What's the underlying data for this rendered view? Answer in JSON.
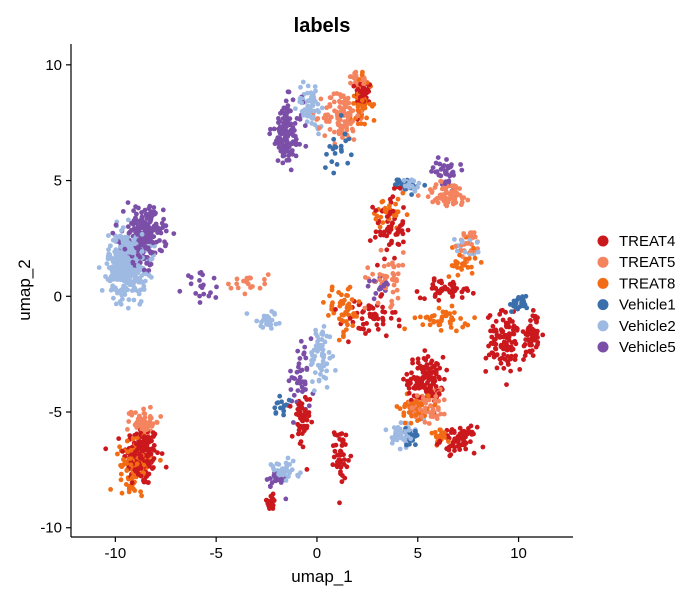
{
  "chart_data": {
    "type": "scatter",
    "title": "labels",
    "xlabel": "umap_1",
    "ylabel": "umap_2",
    "xlim": [
      -12.2,
      12.7
    ],
    "ylim": [
      -10.4,
      10.9
    ],
    "xticks": [
      -10,
      -5,
      0,
      5,
      10
    ],
    "yticks": [
      -10,
      -5,
      0,
      5,
      10
    ],
    "grid": false,
    "legend_position": "right",
    "series": [
      {
        "name": "TREAT4",
        "color": "#cb181d",
        "clusters": [
          {
            "cx": -8.7,
            "cy": -6.9,
            "sx": 0.8,
            "sy": 1.2,
            "n": 160
          },
          {
            "cx": 2.3,
            "cy": 8.8,
            "sx": 0.35,
            "sy": 0.5,
            "n": 50
          },
          {
            "cx": 3.6,
            "cy": 3.0,
            "sx": 0.7,
            "sy": 1.3,
            "n": 60
          },
          {
            "cx": 5.4,
            "cy": -3.6,
            "sx": 0.8,
            "sy": 0.9,
            "n": 120
          },
          {
            "cx": 7.0,
            "cy": -6.2,
            "sx": 0.8,
            "sy": 0.5,
            "n": 70
          },
          {
            "cx": 9.4,
            "cy": -2.0,
            "sx": 0.9,
            "sy": 1.2,
            "n": 110
          },
          {
            "cx": 10.7,
            "cy": -1.6,
            "sx": 0.3,
            "sy": 0.9,
            "n": 50
          },
          {
            "cx": 1.2,
            "cy": -6.8,
            "sx": 0.3,
            "sy": 1.0,
            "n": 45
          },
          {
            "cx": -0.8,
            "cy": -5.5,
            "sx": 0.4,
            "sy": 1.2,
            "n": 45
          },
          {
            "cx": -2.3,
            "cy": -8.9,
            "sx": 0.3,
            "sy": 0.3,
            "n": 20
          },
          {
            "cx": 6.5,
            "cy": 0.3,
            "sx": 1.2,
            "sy": 0.35,
            "n": 50
          },
          {
            "cx": 2.6,
            "cy": -1.0,
            "sx": 1.2,
            "sy": 0.8,
            "n": 50
          }
        ]
      },
      {
        "name": "TREAT5",
        "color": "#f4845f",
        "clusters": [
          {
            "cx": -8.6,
            "cy": -5.4,
            "sx": 0.7,
            "sy": 0.6,
            "n": 60
          },
          {
            "cx": 1.2,
            "cy": 7.8,
            "sx": 0.8,
            "sy": 1.0,
            "n": 100
          },
          {
            "cx": 2.1,
            "cy": 9.3,
            "sx": 0.35,
            "sy": 0.3,
            "n": 30
          },
          {
            "cx": 6.5,
            "cy": 4.4,
            "sx": 1.1,
            "sy": 0.5,
            "n": 70
          },
          {
            "cx": 7.6,
            "cy": 2.2,
            "sx": 0.5,
            "sy": 0.6,
            "n": 30
          },
          {
            "cx": 5.6,
            "cy": -4.6,
            "sx": 0.8,
            "sy": 0.8,
            "n": 50
          },
          {
            "cx": 3.5,
            "cy": 0.8,
            "sx": 1.0,
            "sy": 1.0,
            "n": 40
          },
          {
            "cx": -3.5,
            "cy": 0.6,
            "sx": 1.0,
            "sy": 0.4,
            "n": 20
          }
        ]
      },
      {
        "name": "TREAT8",
        "color": "#f26b15",
        "clusters": [
          {
            "cx": -9.0,
            "cy": -7.3,
            "sx": 0.7,
            "sy": 0.9,
            "n": 110
          },
          {
            "cx": 2.2,
            "cy": 8.3,
            "sx": 0.5,
            "sy": 1.0,
            "n": 40
          },
          {
            "cx": 1.3,
            "cy": -0.6,
            "sx": 0.8,
            "sy": 1.0,
            "n": 50
          },
          {
            "cx": 4.9,
            "cy": -4.8,
            "sx": 0.7,
            "sy": 0.7,
            "n": 50
          },
          {
            "cx": 6.3,
            "cy": -1.0,
            "sx": 1.2,
            "sy": 0.4,
            "n": 40
          },
          {
            "cx": 7.2,
            "cy": 1.5,
            "sx": 0.6,
            "sy": 0.8,
            "n": 30
          },
          {
            "cx": 3.6,
            "cy": 3.5,
            "sx": 0.8,
            "sy": 0.7,
            "n": 30
          },
          {
            "cx": 6.2,
            "cy": -6.0,
            "sx": 0.4,
            "sy": 0.3,
            "n": 20
          }
        ]
      },
      {
        "name": "Vehicle1",
        "color": "#3a6fab",
        "clusters": [
          {
            "cx": 10.0,
            "cy": -0.3,
            "sx": 0.4,
            "sy": 0.3,
            "n": 25
          },
          {
            "cx": 4.5,
            "cy": 4.8,
            "sx": 0.6,
            "sy": 0.3,
            "n": 25
          },
          {
            "cx": 4.6,
            "cy": -6.1,
            "sx": 0.4,
            "sy": 0.3,
            "n": 20
          },
          {
            "cx": -1.8,
            "cy": -4.7,
            "sx": 0.4,
            "sy": 0.4,
            "n": 15
          },
          {
            "cx": 1.0,
            "cy": 6.5,
            "sx": 0.6,
            "sy": 1.0,
            "n": 20
          }
        ]
      },
      {
        "name": "Vehicle2",
        "color": "#9ebae2",
        "clusters": [
          {
            "cx": -9.4,
            "cy": 1.4,
            "sx": 0.85,
            "sy": 1.2,
            "n": 450
          },
          {
            "cx": -0.3,
            "cy": 8.3,
            "sx": 0.6,
            "sy": 0.9,
            "n": 60
          },
          {
            "cx": 0.2,
            "cy": -2.6,
            "sx": 0.5,
            "sy": 1.3,
            "n": 60
          },
          {
            "cx": 4.3,
            "cy": -5.9,
            "sx": 0.5,
            "sy": 0.5,
            "n": 50
          },
          {
            "cx": -1.7,
            "cy": -7.6,
            "sx": 0.7,
            "sy": 0.4,
            "n": 40
          },
          {
            "cx": 4.5,
            "cy": 4.8,
            "sx": 0.6,
            "sy": 0.3,
            "n": 25
          },
          {
            "cx": -2.4,
            "cy": -1.1,
            "sx": 0.9,
            "sy": 0.4,
            "n": 25
          },
          {
            "cx": 7.3,
            "cy": 2.2,
            "sx": 0.5,
            "sy": 0.4,
            "n": 15
          }
        ]
      },
      {
        "name": "Vehicle5",
        "color": "#7b4fa8",
        "clusters": [
          {
            "cx": -8.6,
            "cy": 2.6,
            "sx": 0.9,
            "sy": 1.1,
            "n": 230
          },
          {
            "cx": -1.5,
            "cy": 7.0,
            "sx": 0.7,
            "sy": 1.3,
            "n": 120
          },
          {
            "cx": 6.4,
            "cy": 5.4,
            "sx": 0.6,
            "sy": 0.5,
            "n": 40
          },
          {
            "cx": -0.9,
            "cy": -3.7,
            "sx": 0.6,
            "sy": 1.2,
            "n": 40
          },
          {
            "cx": -5.7,
            "cy": 0.5,
            "sx": 0.8,
            "sy": 0.5,
            "n": 20
          },
          {
            "cx": -2.0,
            "cy": -8.0,
            "sx": 0.5,
            "sy": 0.4,
            "n": 20
          },
          {
            "cx": 3.0,
            "cy": 0.5,
            "sx": 0.6,
            "sy": 0.6,
            "n": 15
          }
        ]
      }
    ]
  }
}
